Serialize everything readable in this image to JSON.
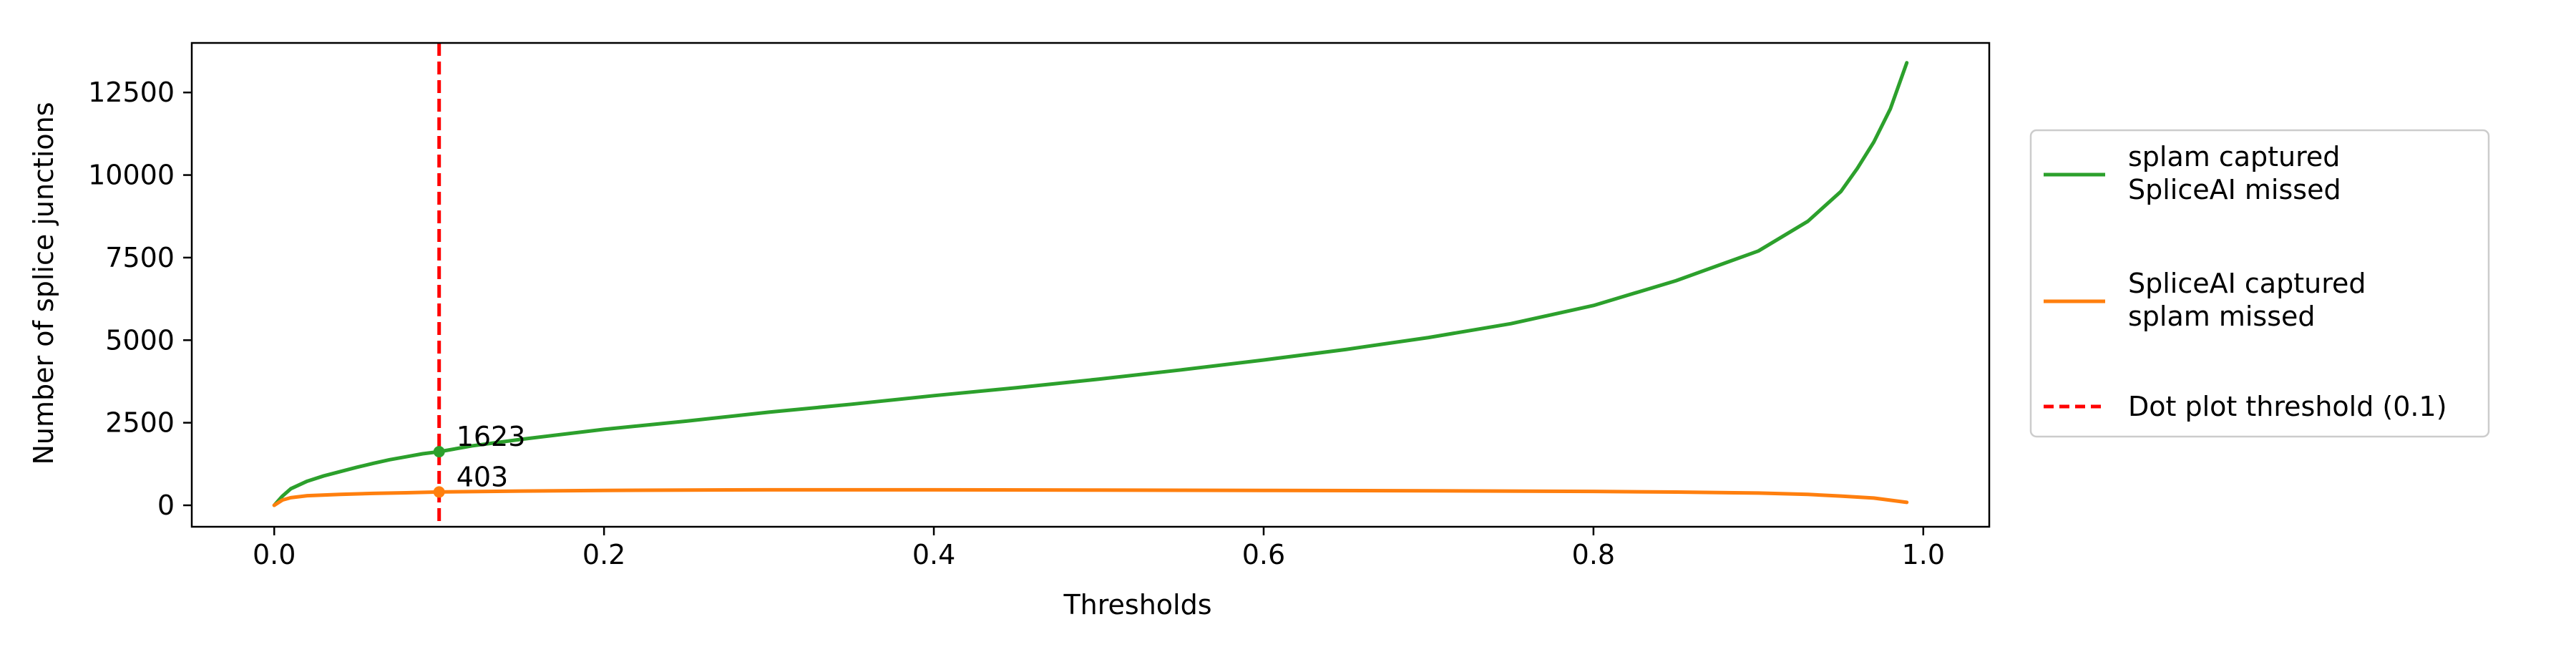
{
  "chart_data": {
    "type": "line",
    "title": "",
    "xlabel": "Thresholds",
    "ylabel": "Number of splice junctions",
    "xlim": [
      -0.05,
      1.04
    ],
    "ylim": [
      -650,
      14000
    ],
    "xticks": [
      0.0,
      0.2,
      0.4,
      0.6,
      0.8,
      1.0
    ],
    "xtick_labels": [
      "0.0",
      "0.2",
      "0.4",
      "0.6",
      "0.8",
      "1.0"
    ],
    "yticks": [
      0,
      2500,
      5000,
      7500,
      10000,
      12500
    ],
    "ytick_labels": [
      "0",
      "2500",
      "5000",
      "7500",
      "10000",
      "12500"
    ],
    "grid": false,
    "legend_position": "outside-right",
    "series": [
      {
        "name": "splam captured\nSpliceAI missed",
        "color": "#2ca02c",
        "x": [
          0.0,
          0.005,
          0.01,
          0.02,
          0.03,
          0.04,
          0.05,
          0.06,
          0.07,
          0.08,
          0.09,
          0.1,
          0.12,
          0.15,
          0.2,
          0.25,
          0.3,
          0.35,
          0.4,
          0.45,
          0.5,
          0.55,
          0.6,
          0.65,
          0.7,
          0.75,
          0.8,
          0.85,
          0.9,
          0.93,
          0.95,
          0.96,
          0.97,
          0.98,
          0.985,
          0.99
        ],
        "y": [
          0,
          280,
          500,
          730,
          890,
          1020,
          1150,
          1270,
          1380,
          1470,
          1560,
          1623,
          1800,
          2000,
          2300,
          2550,
          2820,
          3060,
          3320,
          3560,
          3820,
          4100,
          4400,
          4720,
          5080,
          5500,
          6050,
          6800,
          7700,
          8600,
          9500,
          10200,
          11000,
          12000,
          12700,
          13400
        ]
      },
      {
        "name": "SpliceAI captured\nsplam missed",
        "color": "#ff7f0e",
        "x": [
          0.0,
          0.005,
          0.01,
          0.02,
          0.04,
          0.06,
          0.08,
          0.1,
          0.15,
          0.2,
          0.3,
          0.4,
          0.5,
          0.6,
          0.7,
          0.8,
          0.85,
          0.9,
          0.93,
          0.95,
          0.97,
          0.99
        ],
        "y": [
          0,
          160,
          230,
          290,
          330,
          360,
          380,
          403,
          430,
          450,
          470,
          470,
          460,
          450,
          440,
          420,
          400,
          370,
          330,
          280,
          220,
          90
        ]
      }
    ],
    "reference_line": {
      "name": "Dot plot threshold (0.1)",
      "x": 0.1,
      "color": "#ff0000",
      "style": "dashed"
    },
    "annotations": [
      {
        "x": 0.1,
        "y": 1623,
        "text": "1623",
        "color": "#2ca02c"
      },
      {
        "x": 0.1,
        "y": 403,
        "text": "403",
        "color": "#ff7f0e"
      }
    ]
  }
}
